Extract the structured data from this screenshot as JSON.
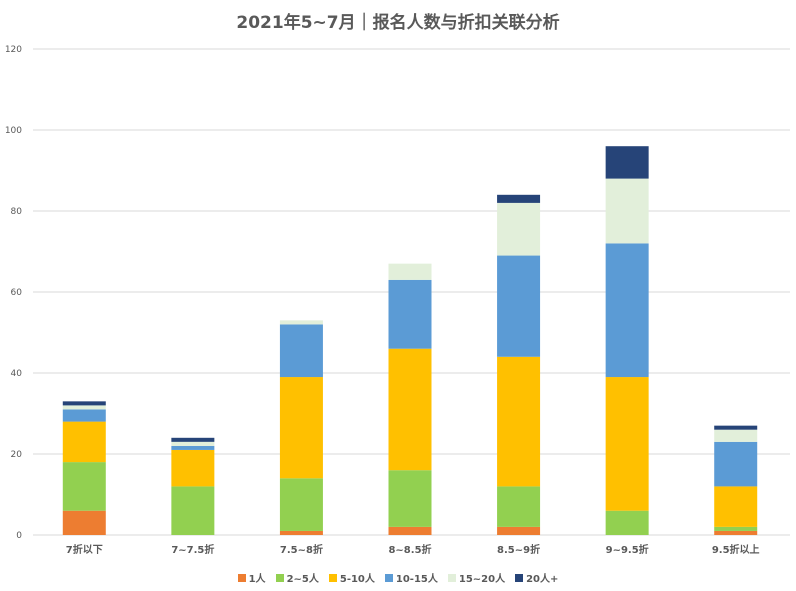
{
  "chart_data": {
    "type": "bar",
    "stacked": true,
    "title": "2021年5~7月｜报名人数与折扣关联分析",
    "xlabel": "",
    "ylabel": "",
    "ylim": [
      0,
      120
    ],
    "yticks": [
      0,
      20,
      40,
      60,
      80,
      100,
      120
    ],
    "grid": true,
    "legend_position": "bottom",
    "categories": [
      "7折以下",
      "7~7.5折",
      "7.5~8折",
      "8~8.5折",
      "8.5~9折",
      "9~9.5折",
      "9.5折以上"
    ],
    "series": [
      {
        "name": "1人",
        "color": "#ED7D31",
        "values": [
          6,
          0,
          1,
          2,
          2,
          0,
          1
        ]
      },
      {
        "name": "2~5人",
        "color": "#92D050",
        "values": [
          12,
          12,
          13,
          14,
          10,
          6,
          1
        ]
      },
      {
        "name": "5-10人",
        "color": "#FFC000",
        "values": [
          10,
          9,
          25,
          30,
          32,
          33,
          10
        ]
      },
      {
        "name": "10-15人",
        "color": "#5B9BD5",
        "values": [
          3,
          1,
          13,
          17,
          25,
          33,
          11
        ]
      },
      {
        "name": "15~20人",
        "color": "#E2EFDA",
        "values": [
          1,
          1,
          1,
          4,
          13,
          16,
          3
        ]
      },
      {
        "name": "20人+",
        "color": "#264478",
        "values": [
          1,
          1,
          0,
          0,
          2,
          8,
          1
        ]
      }
    ]
  }
}
